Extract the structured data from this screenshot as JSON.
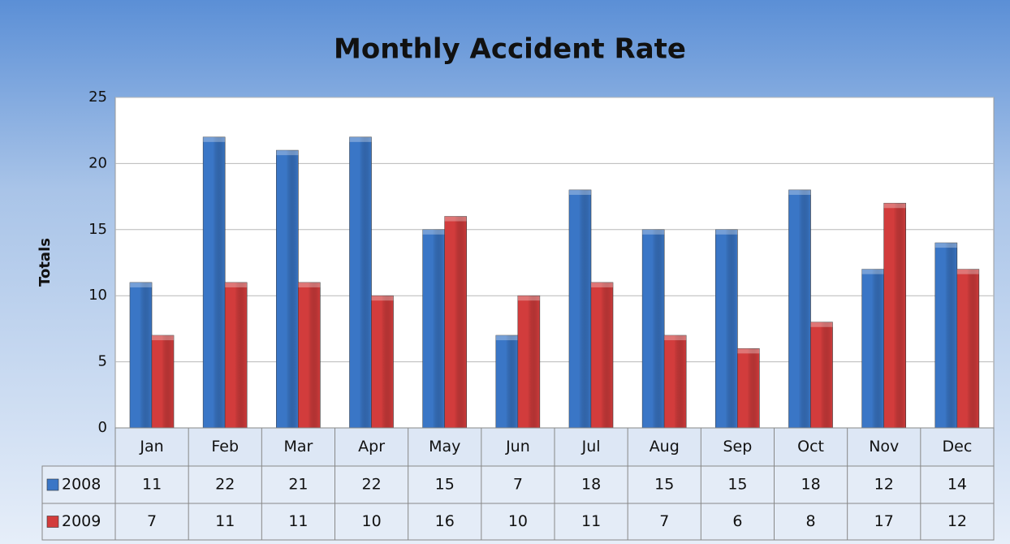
{
  "chart_data": {
    "type": "bar",
    "title": "Monthly Accident Rate",
    "y_label": "Totals",
    "categories": [
      "Jan",
      "Feb",
      "Mar",
      "Apr",
      "May",
      "Jun",
      "Jul",
      "Aug",
      "Sep",
      "Oct",
      "Nov",
      "Dec"
    ],
    "series": [
      {
        "name": "2008",
        "color": "#3a76c6",
        "values": [
          11,
          22,
          21,
          22,
          15,
          7,
          18,
          15,
          15,
          18,
          12,
          14
        ]
      },
      {
        "name": "2009",
        "color": "#d23c3c",
        "values": [
          7,
          11,
          11,
          10,
          16,
          10,
          11,
          7,
          6,
          8,
          17,
          12
        ]
      }
    ],
    "ylim": [
      0,
      25
    ],
    "yticks": [
      0,
      5,
      10,
      15,
      20,
      25
    ],
    "grid": true,
    "data_table": true
  }
}
